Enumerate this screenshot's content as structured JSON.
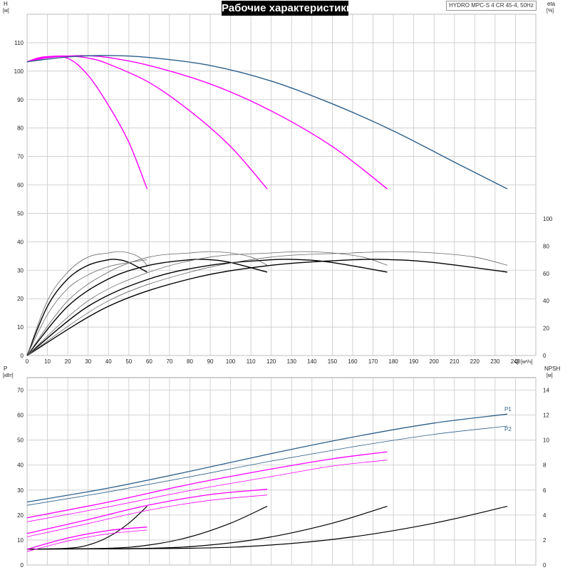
{
  "title": "Рабочие характеристики",
  "model": "HYDRO MPC-S 4 CR 45-4, 50Hz",
  "colors": {
    "single_pump": "#ff00ff",
    "system": "#2d5f8a",
    "efficiency": "#000000",
    "efficiency_thin": "#666666",
    "grid": "#c8c8c8"
  },
  "chart_data": [
    {
      "type": "line",
      "name": "head",
      "left_axis": {
        "label": "H",
        "unit": "[м]",
        "ticks": [
          "0",
          "10",
          "20",
          "30",
          "40",
          "50",
          "60",
          "70",
          "80",
          "90",
          "100",
          "110"
        ],
        "range": [
          0,
          120
        ]
      },
      "right_axis": {
        "label": "eta",
        "unit": "[%]",
        "ticks": [
          "0",
          "20",
          "40",
          "60",
          "80",
          "100"
        ],
        "range": [
          0,
          100
        ]
      },
      "x_axis": {
        "label": "Q",
        "unit": "[м³/ч]",
        "ticks": [
          "0",
          "10",
          "20",
          "30",
          "40",
          "50",
          "60",
          "70",
          "80",
          "90",
          "100",
          "110",
          "120",
          "130",
          "140",
          "150",
          "160",
          "170",
          "180",
          "190",
          "200",
          "210",
          "220",
          "230",
          "240"
        ],
        "range": [
          0,
          250
        ]
      },
      "head_curves": [
        {
          "pumps": 1,
          "x": [
            0,
            8,
            20,
            30,
            40,
            50,
            59
          ],
          "y": [
            103.3,
            105.0,
            104.5,
            98.5,
            88.0,
            75.0,
            58.6
          ]
        },
        {
          "pumps": 2,
          "x": [
            0,
            10,
            20,
            30,
            40,
            60,
            80,
            100,
            118
          ],
          "y": [
            103.3,
            105.0,
            105.3,
            104.6,
            102.5,
            96.0,
            86.0,
            73.5,
            58.6
          ]
        },
        {
          "pumps": 3,
          "x": [
            0,
            10,
            20,
            30,
            40,
            60,
            90,
            120,
            150,
            177
          ],
          "y": [
            103.3,
            104.7,
            105.3,
            105.4,
            104.8,
            102.0,
            95.5,
            86.0,
            73.5,
            58.6
          ]
        },
        {
          "pumps": 4,
          "x": [
            0,
            20,
            40,
            60,
            90,
            120,
            150,
            180,
            210,
            236
          ],
          "y": [
            103.3,
            105.0,
            105.5,
            104.8,
            102.0,
            96.5,
            88.5,
            79.0,
            68.0,
            58.6
          ]
        }
      ],
      "efficiency_curves": [
        {
          "pumps": 1,
          "style": "bold",
          "x": [
            0,
            10,
            20,
            30,
            40,
            45,
            50,
            59
          ],
          "y": [
            0,
            36,
            56,
            66,
            70,
            70,
            68,
            61
          ]
        },
        {
          "pumps": 1,
          "style": "thin",
          "x": [
            0,
            10,
            20,
            30,
            40,
            45,
            50,
            55,
            59
          ],
          "y": [
            0,
            40,
            61,
            72,
            75,
            76,
            75,
            72,
            66
          ]
        },
        {
          "pumps": 1,
          "style": "thin",
          "x": [
            0,
            10,
            20,
            30,
            40,
            50,
            59
          ],
          "y": [
            0,
            30,
            49,
            59,
            65,
            68,
            70
          ]
        },
        {
          "pumps": 2,
          "style": "bold",
          "x": [
            0,
            20,
            40,
            60,
            80,
            90,
            100,
            118
          ],
          "y": [
            0,
            36,
            56,
            66,
            70,
            70,
            68,
            61
          ]
        },
        {
          "pumps": 2,
          "style": "thin",
          "x": [
            0,
            20,
            40,
            60,
            80,
            90,
            100,
            110,
            118
          ],
          "y": [
            0,
            40,
            61,
            72,
            75,
            76,
            75,
            72,
            66
          ]
        },
        {
          "pumps": 3,
          "style": "bold",
          "x": [
            0,
            30,
            60,
            90,
            120,
            135,
            150,
            177
          ],
          "y": [
            0,
            36,
            56,
            66,
            70,
            70,
            68,
            61
          ]
        },
        {
          "pumps": 3,
          "style": "thin",
          "x": [
            0,
            30,
            60,
            90,
            120,
            135,
            150,
            165,
            177
          ],
          "y": [
            0,
            40,
            61,
            72,
            75,
            76,
            75,
            72,
            66
          ]
        },
        {
          "pumps": 4,
          "style": "bold",
          "x": [
            0,
            40,
            80,
            120,
            160,
            180,
            200,
            236
          ],
          "y": [
            0,
            36,
            56,
            66,
            70,
            70,
            68,
            61
          ]
        },
        {
          "pumps": 4,
          "style": "thin",
          "x": [
            0,
            40,
            80,
            120,
            160,
            180,
            200,
            220,
            236
          ],
          "y": [
            0,
            40,
            61,
            72,
            75,
            76,
            75,
            72,
            66
          ]
        }
      ]
    },
    {
      "type": "line",
      "name": "power",
      "left_axis": {
        "label": "P",
        "unit": "[кВт]",
        "ticks": [
          "0",
          "10",
          "20",
          "30",
          "40",
          "50",
          "60",
          "70"
        ],
        "range": [
          0,
          75
        ]
      },
      "right_axis": {
        "label": "NPSH",
        "unit": "[м]",
        "ticks": [
          "0",
          "2",
          "4",
          "6",
          "8",
          "10",
          "12",
          "14"
        ],
        "range": [
          0,
          15
        ]
      },
      "x_axis": {
        "range": [
          0,
          250
        ]
      },
      "series_labels": [
        "P1",
        "P2"
      ],
      "power_curves": [
        {
          "pumps": 1,
          "kind": "P1",
          "x": [
            0,
            20,
            40,
            59
          ],
          "y": [
            6.3,
            10.8,
            13.8,
            15.2
          ]
        },
        {
          "pumps": 1,
          "kind": "P2",
          "x": [
            0,
            20,
            40,
            59
          ],
          "y": [
            5.4,
            9.6,
            12.5,
            14.0
          ]
        },
        {
          "pumps": 2,
          "kind": "P1",
          "x": [
            0,
            30,
            60,
            90,
            118
          ],
          "y": [
            12.6,
            18.2,
            24.0,
            28.2,
            30.3
          ]
        },
        {
          "pumps": 2,
          "kind": "P2",
          "x": [
            0,
            30,
            60,
            90,
            118
          ],
          "y": [
            11.3,
            16.6,
            22.0,
            25.9,
            28.0
          ]
        },
        {
          "pumps": 3,
          "kind": "P1",
          "x": [
            0,
            40,
            80,
            120,
            150,
            177
          ],
          "y": [
            18.9,
            25.2,
            32.3,
            38.4,
            42.5,
            45.3
          ]
        },
        {
          "pumps": 3,
          "kind": "P2",
          "x": [
            0,
            40,
            80,
            120,
            150,
            177
          ],
          "y": [
            17.3,
            23.3,
            29.8,
            35.4,
            39.6,
            42.0
          ]
        },
        {
          "pumps": 4,
          "kind": "P1",
          "x": [
            0,
            40,
            80,
            120,
            160,
            200,
            236
          ],
          "y": [
            25.2,
            30.8,
            37.5,
            44.6,
            51.2,
            56.8,
            60.4
          ]
        },
        {
          "pumps": 4,
          "kind": "P2",
          "x": [
            0,
            40,
            80,
            120,
            160,
            200,
            236
          ],
          "y": [
            23.9,
            29.3,
            35.3,
            41.6,
            47.3,
            52.3,
            55.6
          ]
        }
      ],
      "npsh_curves": [
        {
          "pumps": 1,
          "x": [
            0,
            20,
            30,
            40,
            50,
            59
          ],
          "y": [
            1.27,
            1.34,
            1.6,
            2.25,
            3.35,
            4.7
          ]
        },
        {
          "pumps": 2,
          "x": [
            0,
            40,
            60,
            80,
            100,
            118
          ],
          "y": [
            1.27,
            1.34,
            1.6,
            2.25,
            3.35,
            4.7
          ]
        },
        {
          "pumps": 3,
          "x": [
            0,
            60,
            90,
            120,
            150,
            177
          ],
          "y": [
            1.27,
            1.34,
            1.6,
            2.25,
            3.35,
            4.7
          ]
        },
        {
          "pumps": 4,
          "x": [
            0,
            80,
            120,
            160,
            200,
            236
          ],
          "y": [
            1.27,
            1.34,
            1.6,
            2.25,
            3.35,
            4.7
          ]
        }
      ]
    }
  ]
}
